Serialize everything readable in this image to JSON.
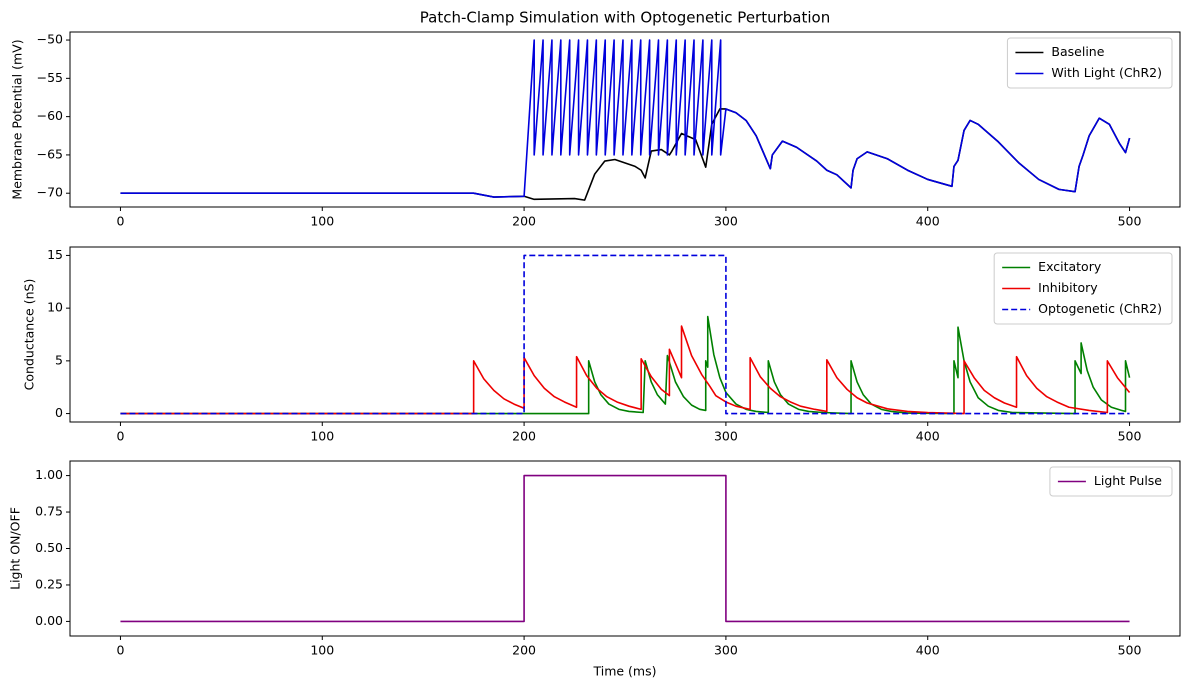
{
  "chart_data": [
    {
      "type": "line",
      "title": "Patch-Clamp Simulation with Optogenetic Perturbation",
      "ylabel": "Membrane Potential (mV)",
      "xlim": [
        -25,
        525
      ],
      "xticks": [
        0,
        100,
        200,
        300,
        400,
        500
      ],
      "ylim": [
        -71.8,
        -48.95
      ],
      "yticks": [
        {
          "value": -70,
          "label": "−70"
        },
        {
          "value": -65,
          "label": "−65"
        },
        {
          "value": -60,
          "label": "−60"
        },
        {
          "value": -55,
          "label": "−55"
        },
        {
          "value": -50,
          "label": "−50"
        }
      ],
      "legend": "upper right",
      "series": [
        {
          "name": "Baseline",
          "color": "#000000",
          "x": [
            0,
            175,
            185,
            200,
            205,
            225,
            230,
            235,
            240,
            245,
            255,
            258,
            260,
            263,
            268,
            272,
            273,
            278,
            285,
            290,
            293,
            297,
            300,
            305,
            310,
            315,
            322,
            323,
            328,
            335,
            345,
            350,
            355,
            362,
            363,
            365,
            370,
            380,
            390,
            400,
            412,
            413,
            415,
            418,
            421,
            425,
            435,
            445,
            455,
            465,
            473,
            475,
            477,
            480,
            485,
            490,
            495,
            498,
            500
          ],
          "values": [
            -70,
            -70,
            -70.5,
            -70.4,
            -70.8,
            -70.7,
            -70.9,
            -67.5,
            -65.8,
            -65.6,
            -66.5,
            -67,
            -68,
            -64.5,
            -64.3,
            -65,
            -64.6,
            -62.2,
            -63,
            -66.6,
            -61,
            -59,
            -59,
            -59.5,
            -60.5,
            -62.5,
            -66.8,
            -65,
            -63.2,
            -64,
            -65.8,
            -67,
            -67.6,
            -69.3,
            -67,
            -65.5,
            -64.6,
            -65.5,
            -67,
            -68.2,
            -69.1,
            -66.5,
            -65.7,
            -61.8,
            -60.5,
            -61,
            -63.3,
            -66,
            -68.2,
            -69.5,
            -69.8,
            -66.5,
            -65,
            -62.5,
            -60.2,
            -61,
            -63.5,
            -64.7,
            -62.8
          ]
        },
        {
          "name": "With Light (ChR2)",
          "color": "#0000dd",
          "x": [
            0,
            175,
            185,
            200,
            205,
            205,
            209.4,
            209.4,
            213.8,
            213.8,
            218.2,
            218.2,
            222.6,
            222.6,
            227,
            227,
            231.4,
            231.4,
            235.8,
            235.8,
            240.2,
            240.2,
            244.6,
            244.6,
            249,
            249,
            253.4,
            253.4,
            257.8,
            257.8,
            262.2,
            262.2,
            266.6,
            266.6,
            271,
            271,
            275.4,
            275.4,
            279.8,
            279.8,
            284.2,
            284.2,
            288.6,
            288.6,
            293,
            293,
            297.4,
            297.4,
            300,
            305,
            310,
            315,
            322,
            323,
            328,
            335,
            345,
            350,
            355,
            362,
            363,
            365,
            370,
            380,
            390,
            400,
            412,
            413,
            415,
            418,
            421,
            425,
            435,
            445,
            455,
            465,
            473,
            475,
            477,
            480,
            485,
            490,
            495,
            498,
            500
          ],
          "values": [
            -70,
            -70,
            -70.5,
            -70.4,
            -50,
            -65,
            -50,
            -65,
            -50,
            -65,
            -50,
            -65,
            -50,
            -65,
            -50,
            -65,
            -50,
            -65,
            -50,
            -65,
            -50,
            -65,
            -50,
            -65,
            -50,
            -65,
            -50,
            -65,
            -50,
            -65,
            -50,
            -65,
            -50,
            -65,
            -50,
            -65,
            -50,
            -65,
            -50,
            -65,
            -50,
            -65,
            -50,
            -65,
            -50,
            -65,
            -50,
            -65,
            -59,
            -59.5,
            -60.5,
            -62.5,
            -66.8,
            -65,
            -63.2,
            -64,
            -65.8,
            -67,
            -67.6,
            -69.3,
            -67,
            -65.5,
            -64.6,
            -65.5,
            -67,
            -68.2,
            -69.1,
            -66.5,
            -65.7,
            -61.8,
            -60.5,
            -61,
            -63.3,
            -66,
            -68.2,
            -69.5,
            -69.8,
            -66.5,
            -65,
            -62.5,
            -60.2,
            -61,
            -63.5,
            -64.7,
            -62.8
          ]
        }
      ]
    },
    {
      "type": "line",
      "ylabel": "Conductance (nS)",
      "xlim": [
        -25,
        525
      ],
      "xticks": [
        0,
        100,
        200,
        300,
        400,
        500
      ],
      "ylim": [
        -0.8,
        15.8
      ],
      "yticks": [
        0,
        5,
        10,
        15
      ],
      "legend": "upper right",
      "series": [
        {
          "name": "Excitatory",
          "color": "#008000",
          "x": [
            0,
            232,
            232,
            235,
            238,
            242,
            247,
            252,
            259,
            260,
            263,
            266,
            270,
            271,
            275,
            279,
            283,
            287,
            290,
            290,
            291,
            291,
            294,
            297,
            300,
            305,
            310,
            315,
            321,
            321,
            324,
            327,
            331,
            336,
            341,
            348,
            362,
            362,
            365,
            368,
            372,
            377,
            382,
            390,
            413,
            413,
            415,
            415,
            418,
            421,
            425,
            430,
            435,
            442,
            473,
            473,
            476,
            476,
            479,
            482,
            486,
            491,
            496,
            498,
            498,
            500
          ],
          "values": [
            0,
            0,
            5,
            3,
            1.8,
            0.9,
            0.4,
            0.2,
            0.1,
            5,
            3,
            1.8,
            0.9,
            5.5,
            3,
            1.6,
            0.8,
            0.4,
            0.3,
            5,
            4.4,
            9.2,
            5.6,
            3.4,
            2,
            0.9,
            0.4,
            0.2,
            0.1,
            5,
            3,
            1.8,
            0.9,
            0.4,
            0.2,
            0.1,
            0,
            5,
            3,
            1.8,
            0.9,
            0.4,
            0.2,
            0.05,
            0,
            5,
            3.4,
            8.2,
            5,
            3,
            1.5,
            0.7,
            0.3,
            0.1,
            0,
            5,
            3.8,
            6.7,
            4.1,
            2.5,
            1.3,
            0.6,
            0.3,
            0.2,
            5,
            3.4
          ]
        },
        {
          "name": "Inhibitory",
          "color": "#ee0000",
          "x": [
            0,
            175,
            175,
            180,
            185,
            190,
            195,
            200,
            200,
            205,
            210,
            215,
            220,
            226,
            226,
            231,
            236,
            241,
            246,
            252,
            258,
            258,
            263,
            268,
            272,
            272,
            276,
            278,
            278,
            283,
            288,
            292,
            295,
            300,
            305,
            312,
            312,
            317,
            322,
            327,
            332,
            337,
            344,
            350,
            350,
            355,
            360,
            365,
            370,
            380,
            390,
            400,
            418,
            418,
            423,
            428,
            433,
            438,
            444,
            444,
            449,
            454,
            459,
            464,
            470,
            480,
            489,
            489,
            494,
            500
          ],
          "values": [
            0,
            0,
            5,
            3.3,
            2.2,
            1.4,
            0.9,
            0.5,
            5.3,
            3.6,
            2.4,
            1.6,
            1.1,
            0.6,
            5.4,
            3.6,
            2.4,
            1.6,
            1.1,
            0.7,
            0.4,
            5.2,
            3.5,
            2.3,
            1.7,
            6.1,
            4.3,
            3.4,
            8.3,
            5.5,
            3.7,
            2.6,
            1.7,
            1.1,
            0.7,
            0.4,
            5.3,
            3.5,
            2.4,
            1.6,
            1.1,
            0.7,
            0.4,
            0.2,
            5.1,
            3.4,
            2.3,
            1.5,
            1,
            0.45,
            0.2,
            0.1,
            0,
            5,
            3.4,
            2.2,
            1.5,
            1,
            0.6,
            5.4,
            3.6,
            2.4,
            1.6,
            1.1,
            0.6,
            0.3,
            0.1,
            5,
            3.4,
            2
          ]
        },
        {
          "name": "Optogenetic (ChR2)",
          "color": "#0000dd",
          "linestyle": "dashed",
          "x": [
            0,
            200,
            200,
            300,
            300,
            500
          ],
          "values": [
            0,
            0,
            15,
            15,
            0,
            0
          ]
        }
      ]
    },
    {
      "type": "line",
      "ylabel": "Light ON/OFF",
      "xlabel": "Time (ms)",
      "xlim": [
        -25,
        525
      ],
      "xticks": [
        0,
        100,
        200,
        300,
        400,
        500
      ],
      "ylim": [
        -0.1,
        1.1
      ],
      "yticks": [
        {
          "value": 0,
          "label": "0.00"
        },
        {
          "value": 0.25,
          "label": "0.25"
        },
        {
          "value": 0.5,
          "label": "0.50"
        },
        {
          "value": 0.75,
          "label": "0.75"
        },
        {
          "value": 1,
          "label": "1.00"
        }
      ],
      "legend": "upper right",
      "series": [
        {
          "name": "Light Pulse",
          "color": "#800080",
          "x": [
            0,
            200,
            200,
            300,
            300,
            500
          ],
          "values": [
            0,
            0,
            1,
            1,
            0,
            0
          ]
        }
      ]
    }
  ]
}
